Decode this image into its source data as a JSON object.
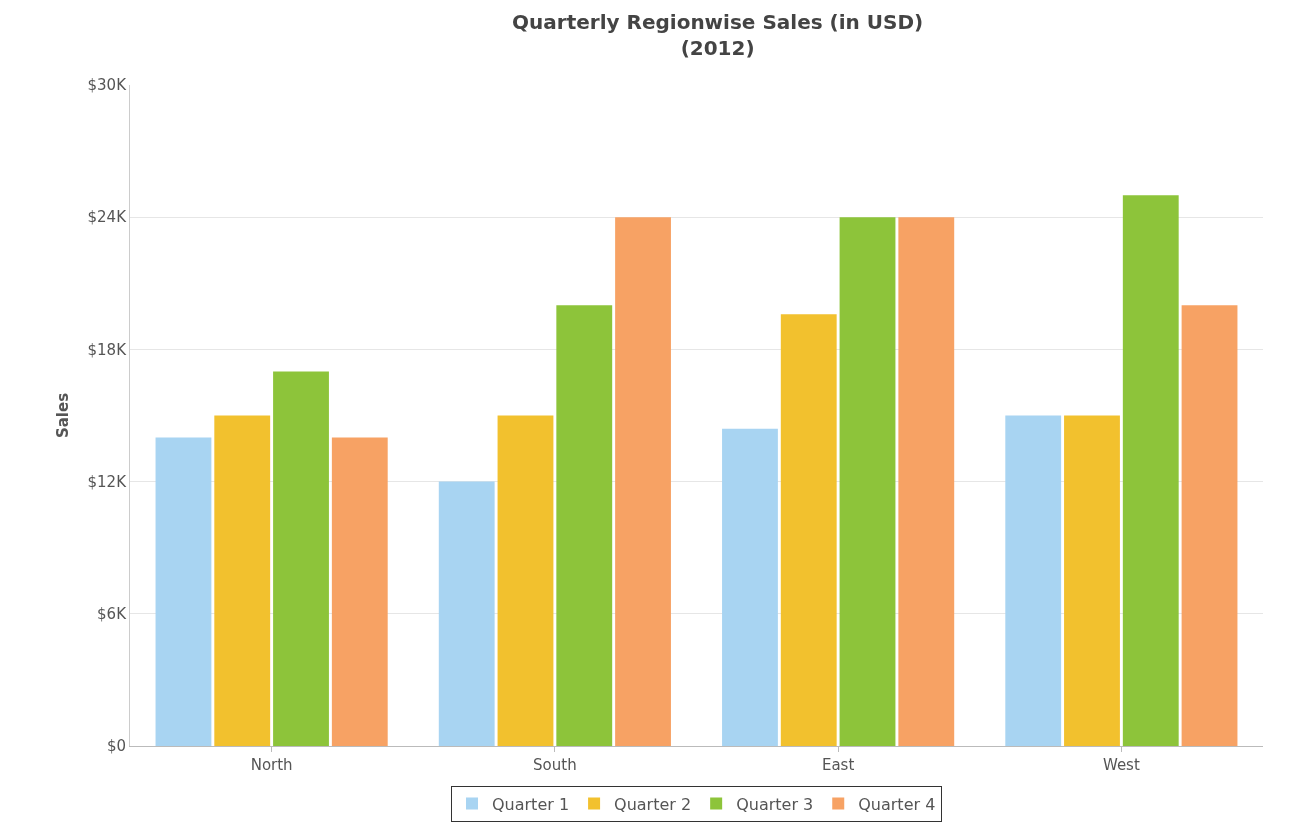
{
  "chart_data": {
    "type": "bar",
    "title": "Quarterly Regionwise Sales (in USD)",
    "subtitle": "(2012)",
    "ylabel": "Sales",
    "categories": [
      "North",
      "South",
      "East",
      "West"
    ],
    "series": [
      {
        "name": "Quarter 1",
        "color": "#a8d4f2",
        "values": [
          14,
          12,
          14.4,
          15
        ]
      },
      {
        "name": "Quarter 2",
        "color": "#f2c12e",
        "values": [
          15,
          15,
          19.6,
          15
        ]
      },
      {
        "name": "Quarter 3",
        "color": "#8dc43a",
        "values": [
          17,
          20,
          24,
          25
        ]
      },
      {
        "name": "Quarter 4",
        "color": "#f7a264",
        "values": [
          14,
          24,
          24,
          20
        ]
      }
    ],
    "ylim": [
      0,
      30
    ],
    "yticks": [
      {
        "value": 0,
        "label": "$0"
      },
      {
        "value": 6,
        "label": "$6K"
      },
      {
        "value": 12,
        "label": "$12K"
      },
      {
        "value": 18,
        "label": "$18K"
      },
      {
        "value": 24,
        "label": "$24K"
      },
      {
        "value": 30,
        "label": "$30K"
      }
    ],
    "grid": "y",
    "legend": "bottom"
  }
}
